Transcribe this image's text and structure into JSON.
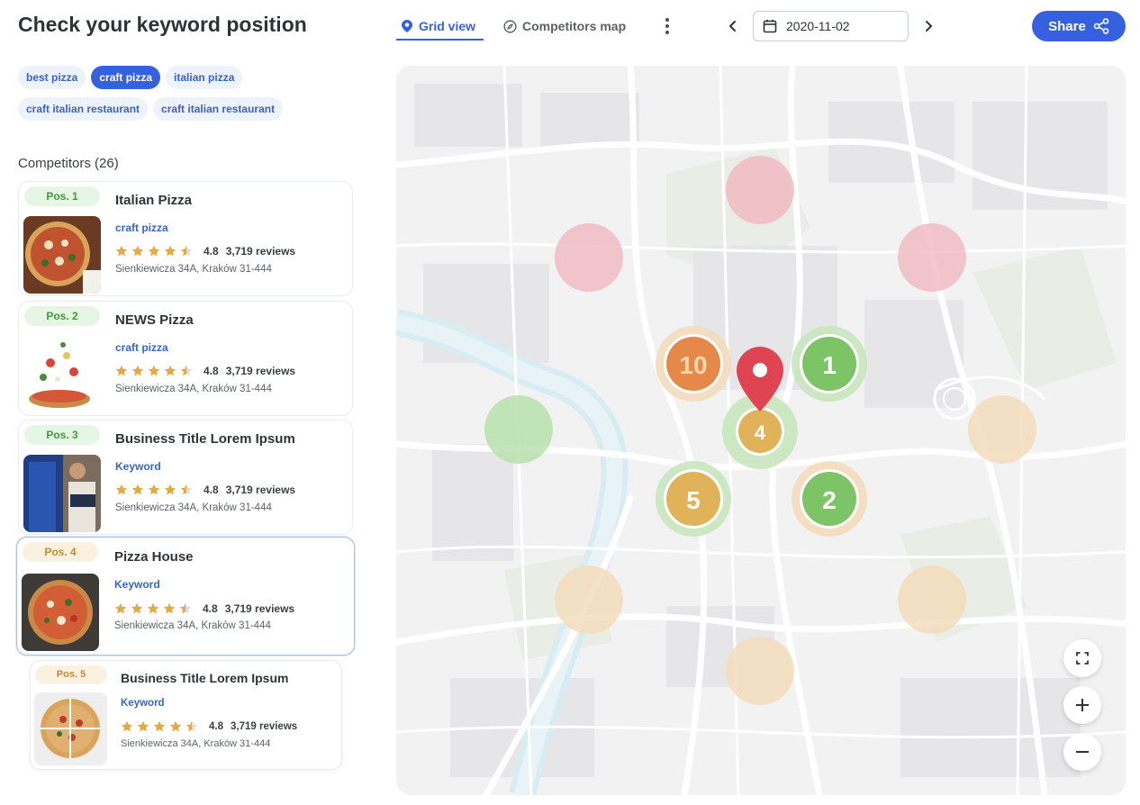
{
  "header": {
    "title": "Check your keyword position"
  },
  "keywords": [
    {
      "label": "best pizza",
      "active": false
    },
    {
      "label": "craft pizza",
      "active": true
    },
    {
      "label": "italian pizza",
      "active": false
    },
    {
      "label": "craft italian restaurant",
      "active": false
    },
    {
      "label": "craft italian restaurant",
      "active": false
    }
  ],
  "competitors": {
    "heading": "Competitors (26)",
    "items": [
      {
        "pos": "Pos. 1",
        "name": "Italian Pizza",
        "keyword": "craft pizza",
        "rating": "4.8",
        "reviews": "3,719 reviews",
        "address": "Sienkiewicza 34A, Kraków 31-444",
        "rank_color": "green",
        "stars": 4.5
      },
      {
        "pos": "Pos. 2",
        "name": "NEWS Pizza",
        "keyword": "craft pizza",
        "rating": "4.8",
        "reviews": "3,719 reviews",
        "address": "Sienkiewicza 34A, Kraków 31-444",
        "rank_color": "green",
        "stars": 4.5
      },
      {
        "pos": "Pos. 3",
        "name": "Business Title Lorem Ipsum",
        "keyword": "Keyword",
        "rating": "4.8",
        "reviews": "3,719 reviews",
        "address": "Sienkiewicza 34A, Kraków 31-444",
        "rank_color": "green",
        "stars": 4.5
      },
      {
        "pos": "Pos. 4",
        "name": "Pizza House",
        "keyword": "Keyword",
        "rating": "4.8",
        "reviews": "3,719 reviews",
        "address": "Sienkiewicza 34A, Kraków 31-444",
        "rank_color": "orange",
        "stars": 4.5
      },
      {
        "pos": "Pos. 5",
        "name": "Business Title Lorem Ipsum",
        "keyword": "Keyword",
        "rating": "4.8",
        "reviews": "3,719 reviews",
        "address": "Sienkiewicza 34A, Kraków 31-444",
        "rank_color": "orange",
        "stars": 4.5
      }
    ]
  },
  "toolbar": {
    "grid_view_label": "Grid view",
    "grid_view_icon": "location-pin-icon",
    "competitors_map_label": "Competitors map",
    "competitors_map_icon": "compass-icon",
    "date": "2020-11-02",
    "share_label": "Share"
  },
  "map": {
    "markers": [
      {
        "label": "10",
        "color": "orange"
      },
      {
        "label": "1",
        "color": "green"
      },
      {
        "label": "4",
        "color": "yellow"
      },
      {
        "label": "5",
        "color": "yellow"
      },
      {
        "label": "2",
        "color": "green"
      }
    ],
    "colors": {
      "green": "#7cc466",
      "yellow": "#e0b25a",
      "orange": "#e5894a",
      "red": "#f0b3bd",
      "peach": "#f3dcbb"
    }
  },
  "colors": {
    "accent": "#3560e0",
    "keyword_text": "#3a63c9"
  }
}
